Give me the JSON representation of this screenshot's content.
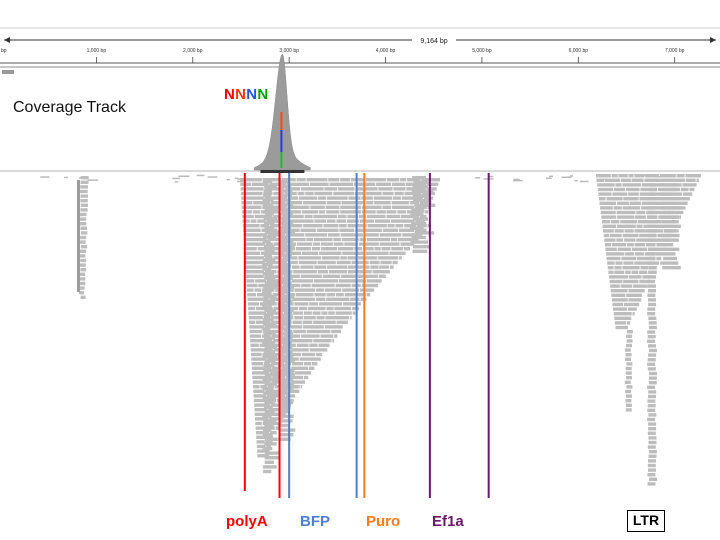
{
  "ruler": {
    "span_label": "9,164 bp",
    "left_edge_label": "bp",
    "ticks": [
      {
        "bp": 1000,
        "label": "1,000 bp"
      },
      {
        "bp": 2000,
        "label": "2,000 bp"
      },
      {
        "bp": 3000,
        "label": "3,000 bp"
      },
      {
        "bp": 4000,
        "label": "4,000 bp"
      },
      {
        "bp": 5000,
        "label": "5,000 bp"
      },
      {
        "bp": 6000,
        "label": "6,000 bp"
      },
      {
        "bp": 7000,
        "label": "7,000 bp"
      }
    ],
    "view_start_bp": 0,
    "view_end_bp": 7470
  },
  "coverage": {
    "label": "Coverage Track",
    "peak_center_bp": 2930,
    "nnnn": [
      {
        "char": "N",
        "color": "#ff0000"
      },
      {
        "char": "N",
        "color": "#ff3300"
      },
      {
        "char": "N",
        "color": "#2255dd"
      },
      {
        "char": "N",
        "color": "#00a000"
      }
    ]
  },
  "features": [
    {
      "name": "polyA",
      "color": "#ff0000",
      "markers_bp": [
        2540,
        2900
      ]
    },
    {
      "name": "BFP",
      "color": "#4f7fd0",
      "markers_bp": [
        3000,
        3700
      ]
    },
    {
      "name": "Puro",
      "color": "#ff7a1a",
      "markers_bp": [
        3780
      ]
    },
    {
      "name": "Ef1a",
      "color": "#6a1a6a",
      "markers_bp": [
        4460,
        5070
      ]
    }
  ],
  "ltr": {
    "label": "LTR"
  },
  "colors": {
    "read": "#bdbdbd",
    "read_edge": "#a6a6a6",
    "coverage_fill": "#9b9b9b",
    "frame": "#cfcfcf"
  }
}
